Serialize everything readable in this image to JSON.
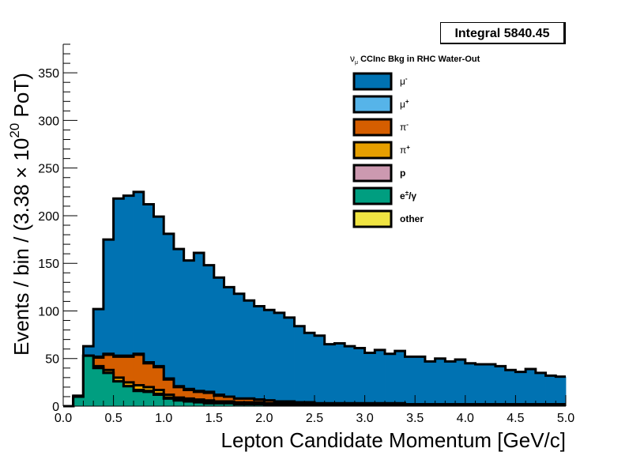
{
  "stats": {
    "label": "Integral",
    "value": "5840.45"
  },
  "chart_data": {
    "type": "area",
    "title": "ν_μ CCInc Bkg in RHC Water-Out",
    "title_parts": {
      "nu": "ν",
      "mu": "μ",
      "rest": " CCInc Bkg in RHC Water-Out"
    },
    "xlabel": "Lepton Candidate Momentum [GeV/c]",
    "ylabel": "Events / bin / (3.38 × 10^20 PoT)",
    "ylabel_parts": {
      "pre": "Events / bin / (3.38",
      "times": "×",
      "base": "10",
      "exp": "20",
      "post": "PoT)"
    },
    "xlim": [
      0,
      5
    ],
    "ylim": [
      0,
      380
    ],
    "xticks": [
      "0.0",
      "0.5",
      "1.0",
      "1.5",
      "2.0",
      "2.5",
      "3.0",
      "3.5",
      "4.0",
      "4.5",
      "5.0"
    ],
    "yticks": [
      "0",
      "50",
      "100",
      "150",
      "200",
      "250",
      "300",
      "350"
    ],
    "grid": false,
    "legend_position": "top-right",
    "bin_width": 0.1,
    "stack_order": [
      "e±/γ",
      "p",
      "π+",
      "π-",
      "μ+",
      "μ-"
    ],
    "series": [
      {
        "name": "μ-",
        "label_base": "μ",
        "label_sup": "-",
        "color": "#0072b2",
        "values": [
          0,
          1,
          10,
          50,
          120,
          165,
          168,
          170,
          166,
          157,
          152,
          144,
          135,
          145,
          133,
          123,
          115,
          110,
          103,
          98,
          95,
          93,
          88,
          80,
          73,
          71,
          62,
          63,
          60,
          58,
          53,
          56,
          52,
          55,
          50,
          50,
          45,
          48,
          45,
          47,
          43,
          42,
          42,
          40,
          36,
          34,
          37,
          33,
          30,
          29
        ]
      },
      {
        "name": "μ+",
        "label_base": "μ",
        "label_sup": "+",
        "color": "#56b4e9",
        "values": [
          0,
          0,
          0,
          1,
          1,
          1,
          1,
          1,
          1,
          1,
          1,
          1,
          1,
          1,
          1,
          1,
          0,
          0,
          0,
          0,
          0,
          0,
          0,
          0,
          0,
          0,
          0,
          0,
          0,
          0,
          0,
          0,
          0,
          0,
          0,
          0,
          0,
          0,
          0,
          0,
          0,
          0,
          0,
          0,
          0,
          0,
          0,
          0,
          0,
          0
        ]
      },
      {
        "name": "π-",
        "label_base": "π",
        "label_sup": "-",
        "color": "#d55e00",
        "values": [
          0,
          0,
          0,
          9,
          16,
          22,
          27,
          32,
          25,
          24,
          16,
          11,
          9,
          8,
          8,
          6,
          5,
          4,
          4,
          3,
          3,
          2,
          2,
          2,
          2,
          1,
          1,
          1,
          1,
          1,
          1,
          1,
          1,
          1,
          0,
          0,
          0,
          0,
          0,
          0,
          0,
          0,
          0,
          0,
          0,
          0,
          0,
          0,
          0,
          0
        ]
      },
      {
        "name": "π+",
        "label_base": "π",
        "label_sup": "+",
        "color": "#e69f00",
        "values": [
          0,
          0,
          0,
          2,
          3,
          4,
          4,
          5,
          4,
          4,
          3,
          2,
          2,
          2,
          2,
          1,
          1,
          1,
          1,
          1,
          1,
          1,
          1,
          0,
          0,
          0,
          0,
          0,
          0,
          0,
          0,
          0,
          0,
          0,
          0,
          0,
          0,
          0,
          0,
          0,
          0,
          0,
          0,
          0,
          0,
          0,
          0,
          0,
          0,
          0
        ]
      },
      {
        "name": "p",
        "label_base": "p",
        "label_sup": "",
        "color": "#cc99b0",
        "values": [
          0,
          0,
          0,
          0,
          0,
          0,
          0,
          1,
          1,
          1,
          1,
          1,
          1,
          1,
          1,
          1,
          1,
          1,
          1,
          1,
          1,
          1,
          1,
          1,
          1,
          1,
          1,
          1,
          1,
          1,
          1,
          1,
          1,
          1,
          1,
          1,
          1,
          1,
          1,
          1,
          1,
          1,
          1,
          1,
          1,
          1,
          1,
          1,
          1,
          1
        ]
      },
      {
        "name": "e±/γ",
        "label_base": "e",
        "label_sup": "±",
        "label_tail": "/γ",
        "color": "#009e80",
        "values": [
          0,
          10,
          53,
          40,
          35,
          26,
          21,
          16,
          15,
          12,
          8,
          6,
          5,
          4,
          3,
          3,
          3,
          2,
          2,
          2,
          1,
          1,
          1,
          1,
          1,
          1,
          1,
          1,
          1,
          1,
          1,
          1,
          1,
          1,
          1,
          1,
          1,
          1,
          1,
          1,
          1,
          1,
          1,
          1,
          1,
          1,
          1,
          1,
          1,
          1
        ]
      },
      {
        "name": "other",
        "label_base": "other",
        "label_sup": "",
        "color": "#f0e442",
        "values": [
          0,
          0,
          0,
          0,
          0,
          0,
          0,
          0,
          0,
          0,
          0,
          0,
          0,
          0,
          0,
          0,
          0,
          0,
          0,
          0,
          0,
          0,
          0,
          0,
          0,
          0,
          0,
          0,
          0,
          0,
          0,
          0,
          0,
          0,
          0,
          0,
          0,
          0,
          0,
          0,
          0,
          0,
          0,
          0,
          0,
          0,
          0,
          0,
          0,
          0
        ]
      }
    ]
  }
}
